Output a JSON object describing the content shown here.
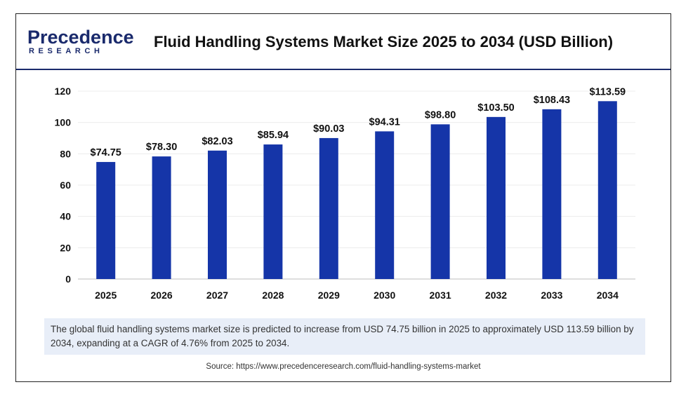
{
  "logo": {
    "main": "Precedence",
    "sub": "RESEARCH"
  },
  "header": {
    "title": "Fluid Handling Systems Market Size 2025 to 2034 (USD Billion)"
  },
  "colors": {
    "bar": "#1535a8",
    "brand": "#1a2a6c",
    "caption_bg": "#e8eef8"
  },
  "chart_data": {
    "type": "bar",
    "categories": [
      "2025",
      "2026",
      "2027",
      "2028",
      "2029",
      "2030",
      "2031",
      "2032",
      "2033",
      "2034"
    ],
    "values": [
      74.75,
      78.3,
      82.03,
      85.94,
      90.03,
      94.31,
      98.8,
      103.5,
      108.43,
      113.59
    ],
    "data_labels": [
      "$74.75",
      "$78.30",
      "$82.03",
      "$85.94",
      "$90.03",
      "$94.31",
      "$98.80",
      "$103.50",
      "$108.43",
      "$113.59"
    ],
    "title": "Fluid Handling Systems Market Size 2025 to 2034 (USD Billion)",
    "xlabel": "",
    "ylabel": "",
    "ylim": [
      0,
      120
    ],
    "yticks": [
      "0",
      "20",
      "40",
      "60",
      "80",
      "100",
      "120"
    ],
    "grid": true,
    "legend": "none"
  },
  "caption": "The global fluid handling systems market size is predicted to increase from USD 74.75 billion in 2025 to approximately USD 113.59 billion by 2034, expanding at a CAGR of 4.76% from 2025 to 2034.",
  "source": "Source: https://www.precedenceresearch.com/fluid-handling-systems-market"
}
